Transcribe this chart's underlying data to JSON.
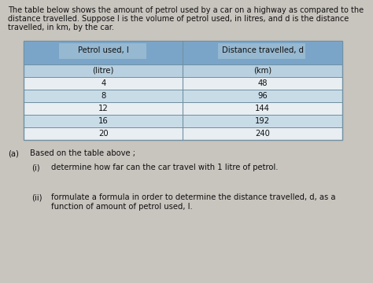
{
  "title_line1": "The table below shows the amount of petrol used by a car on a highway as compared to the",
  "title_line2": "distance travelled. Suppose l is the volume of petrol used, in litres, and d is the distance",
  "title_line3": "travelled, in km, by the car.",
  "col1_header": "Petrol used, l",
  "col2_header": "Distance travelled, d",
  "col1_unit": "(litre)",
  "col2_unit": "(km)",
  "petrol": [
    4,
    8,
    12,
    16,
    20
  ],
  "distance": [
    48,
    96,
    144,
    192,
    240
  ],
  "header_bg": "#7aa5c8",
  "header_inner_bg": "#aac5d8",
  "unit_bg": "#b8d0e0",
  "row_bg_odd": "#c8dce8",
  "row_bg_even": "#e8eef2",
  "table_border": "#7090a0",
  "part_a_text": "Based on the table above ;",
  "part_a_label": "(a)",
  "part_i_label": "(i)",
  "part_i_text": "determine how far can the car travel with 1 litre of petrol.",
  "part_ii_label": "(ii)",
  "part_ii_text": "formulate a formula in order to determine the distance travelled, d, as a",
  "part_ii_text2": "function of amount of petrol used, l.",
  "bg_color": "#c8c4be",
  "text_color": "#111111",
  "title_fontsize": 7.0,
  "body_fontsize": 7.2
}
